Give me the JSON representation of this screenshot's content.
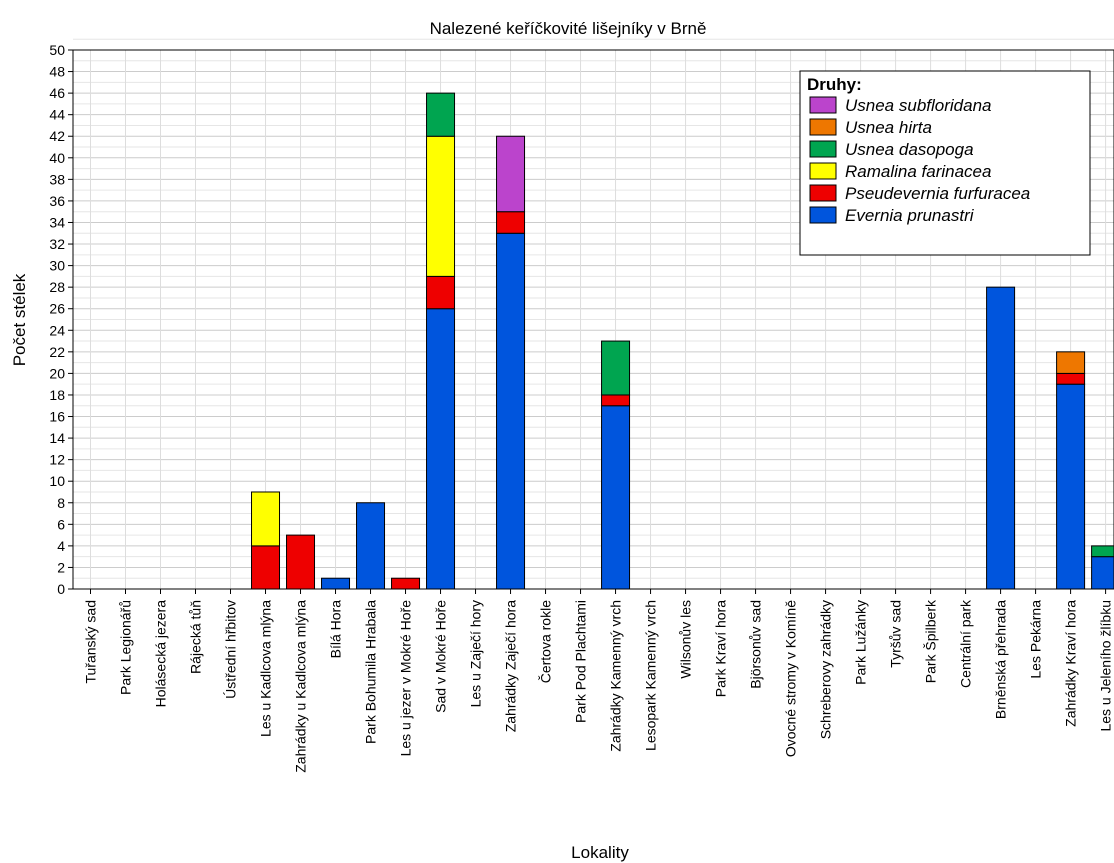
{
  "chart_data": {
    "type": "bar",
    "stacked": true,
    "title": "Nalezené keříčkovité lišejníky v Brně",
    "xlabel": "Lokality",
    "ylabel": "Počet stélek",
    "ylim": [
      0,
      50
    ],
    "yticks": [
      0,
      2,
      4,
      6,
      8,
      10,
      12,
      14,
      16,
      18,
      20,
      22,
      24,
      26,
      28,
      30,
      32,
      34,
      36,
      38,
      40,
      42,
      44,
      46,
      48,
      50
    ],
    "grid": true,
    "legend": {
      "title": "Druhy:",
      "placement": "top-right"
    },
    "categories": [
      "Tuřanský sad",
      "Park Legionářů",
      "Holásecká jezera",
      "Rájecká tůň",
      "Ústřední hřbitov",
      "Les u Kadlcova mlýna",
      "Zahrádky u Kadlcova mlýna",
      "Bílá Hora",
      "Park Bohumila Hrabala",
      "Les u jezer v Mokré Hoře",
      "Sad v Mokré Hoře",
      "Les u Zaječí hory",
      "Zahrádky Zaječí hora",
      "Čertova rokle",
      "Park Pod Plachtami",
      "Zahrádky Kamenný vrch",
      "Lesopark Kamenný vrch",
      "Wilsonův les",
      "Park Kraví hora",
      "Björsonův sad",
      "Ovocné stromy v Komíně",
      "Schreberovy zahrádky",
      "Park Lužánky",
      "Tyršův sad",
      "Park Špilberk",
      "Centrální park",
      "Brněnská přehrada",
      "Les Pekárna",
      "Zahrádky Kraví hora",
      "Les u Jeleního žlíbku"
    ],
    "series": [
      {
        "name": "Evernia prunastri",
        "color": "#0055dd",
        "values": [
          0,
          0,
          0,
          0,
          0,
          0,
          0,
          1,
          8,
          0,
          26,
          0,
          33,
          0,
          0,
          17,
          0,
          0,
          0,
          0,
          0,
          0,
          0,
          0,
          0,
          0,
          28,
          0,
          19,
          3
        ]
      },
      {
        "name": "Pseudevernia furfuracea",
        "color": "#ee0000",
        "values": [
          0,
          0,
          0,
          0,
          0,
          4,
          5,
          0,
          0,
          1,
          3,
          0,
          2,
          0,
          0,
          1,
          0,
          0,
          0,
          0,
          0,
          0,
          0,
          0,
          0,
          0,
          0,
          0,
          1,
          0
        ]
      },
      {
        "name": "Ramalina farinacea",
        "color": "#ffff00",
        "values": [
          0,
          0,
          0,
          0,
          0,
          5,
          0,
          0,
          0,
          0,
          13,
          0,
          0,
          0,
          0,
          0,
          0,
          0,
          0,
          0,
          0,
          0,
          0,
          0,
          0,
          0,
          0,
          0,
          0,
          0
        ]
      },
      {
        "name": "Usnea dasopoga",
        "color": "#00a550",
        "values": [
          0,
          0,
          0,
          0,
          0,
          0,
          0,
          0,
          0,
          0,
          4,
          0,
          0,
          0,
          0,
          5,
          0,
          0,
          0,
          0,
          0,
          0,
          0,
          0,
          0,
          0,
          0,
          0,
          0,
          1
        ]
      },
      {
        "name": "Usnea hirta",
        "color": "#ee7700",
        "values": [
          0,
          0,
          0,
          0,
          0,
          0,
          0,
          0,
          0,
          0,
          0,
          0,
          0,
          0,
          0,
          0,
          0,
          0,
          0,
          0,
          0,
          0,
          0,
          0,
          0,
          0,
          0,
          0,
          2,
          0
        ]
      },
      {
        "name": "Usnea subfloridana",
        "color": "#bb44cc",
        "values": [
          0,
          0,
          0,
          0,
          0,
          0,
          0,
          0,
          0,
          0,
          0,
          0,
          7,
          0,
          0,
          0,
          0,
          0,
          0,
          0,
          0,
          0,
          0,
          0,
          0,
          0,
          0,
          0,
          0,
          0
        ]
      }
    ]
  }
}
